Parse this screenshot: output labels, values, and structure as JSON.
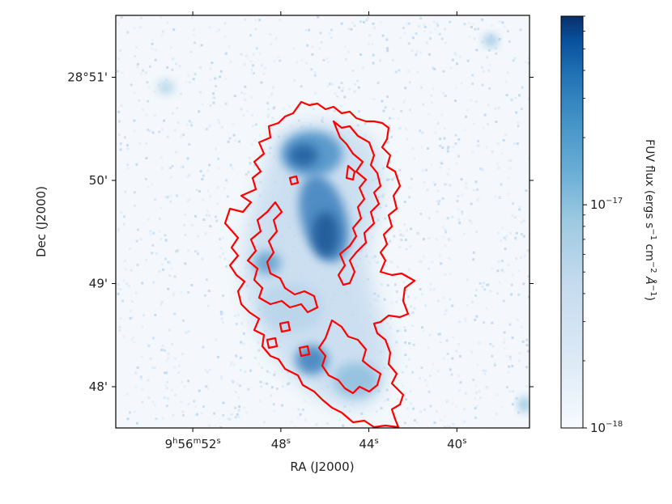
{
  "chart_data": {
    "type": "heatmap",
    "title": "",
    "xlabel": "RA (J2000)",
    "ylabel": "Dec (J2000)",
    "x_ticks": [
      {
        "value": 52,
        "h": "9",
        "m": "56",
        "s": "52"
      },
      {
        "value": 48,
        "h": "",
        "m": "",
        "s": "48"
      },
      {
        "value": 44,
        "h": "",
        "m": "",
        "s": "44"
      },
      {
        "value": 40,
        "h": "",
        "m": "",
        "s": "40"
      }
    ],
    "x_range_seconds": [
      55.5,
      36.7
    ],
    "y_ticks": [
      {
        "value": 51,
        "label": "28°51'"
      },
      {
        "value": 50,
        "label": "50'"
      },
      {
        "value": 49,
        "label": "49'"
      },
      {
        "value": 48,
        "label": "48'"
      }
    ],
    "y_range_arcmin": [
      47.6,
      51.6
    ],
    "colorbar": {
      "label_main": "FUV flux (ergs s",
      "label_exp1": "−1",
      "label_mid": " cm",
      "label_exp2": "−2",
      "label_angstrom": "Å",
      "label_exp3": "−1",
      "label_end": ")",
      "scale": "log",
      "range": [
        1e-18,
        7e-17
      ],
      "ticks": [
        {
          "value": 1e-18,
          "base": "10",
          "exp": "−18"
        },
        {
          "value": 1e-17,
          "base": "10",
          "exp": "−17"
        }
      ],
      "colormap": "Blues"
    },
    "contour_color": "#ff0000",
    "grid": false
  }
}
